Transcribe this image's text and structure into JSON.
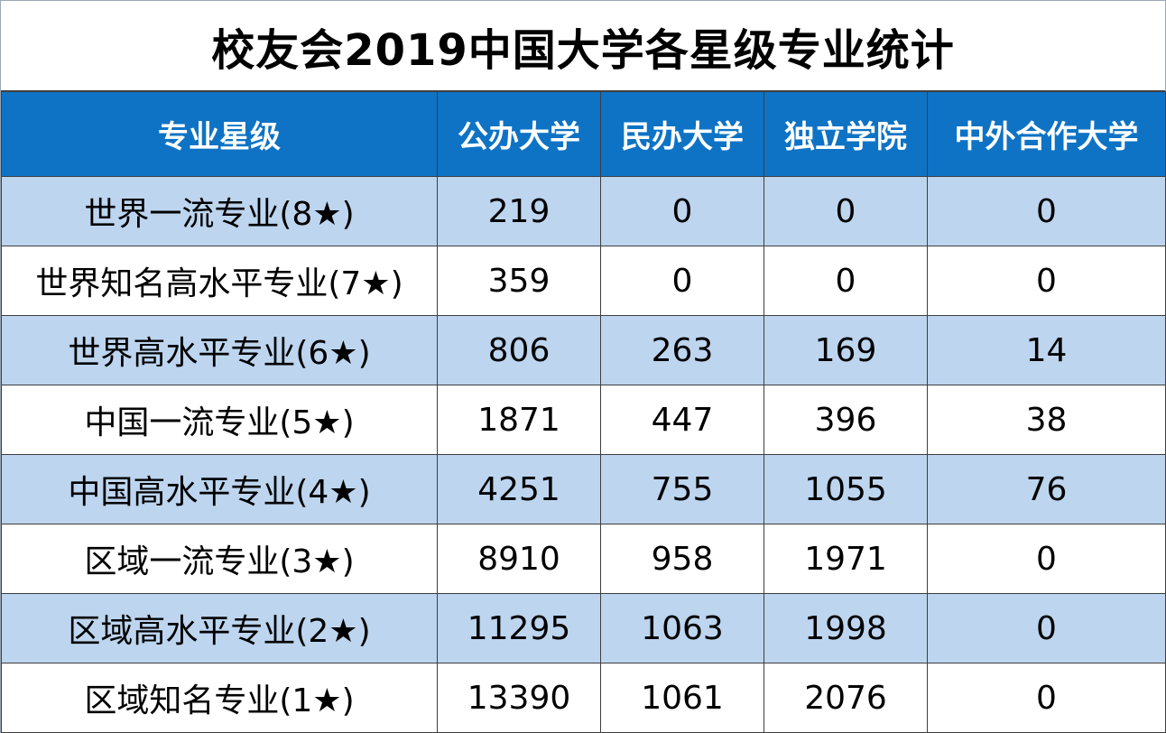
{
  "title": "校友会2019中国大学各星级专业统计",
  "colors": {
    "header_bg": "#0e73c5",
    "header_text": "#ffffff",
    "stripe": "#bdd5ef",
    "border": "#3e3e3e"
  },
  "table": {
    "headers": [
      "专业星级",
      "公办大学",
      "民办大学",
      "独立学院",
      "中外合作大学"
    ],
    "rows": [
      [
        "世界一流专业(8★)",
        "219",
        "0",
        "0",
        "0"
      ],
      [
        "世界知名高水平专业(7★)",
        "359",
        "0",
        "0",
        "0"
      ],
      [
        "世界高水平专业(6★)",
        "806",
        "263",
        "169",
        "14"
      ],
      [
        "中国一流专业(5★)",
        "1871",
        "447",
        "396",
        "38"
      ],
      [
        "中国高水平专业(4★)",
        "4251",
        "755",
        "1055",
        "76"
      ],
      [
        "区域一流专业(3★)",
        "8910",
        "958",
        "1971",
        "0"
      ],
      [
        "区域高水平专业(2★)",
        "11295",
        "1063",
        "1998",
        "0"
      ],
      [
        "区域知名专业(1★)",
        "13390",
        "1061",
        "2076",
        "0"
      ]
    ]
  }
}
